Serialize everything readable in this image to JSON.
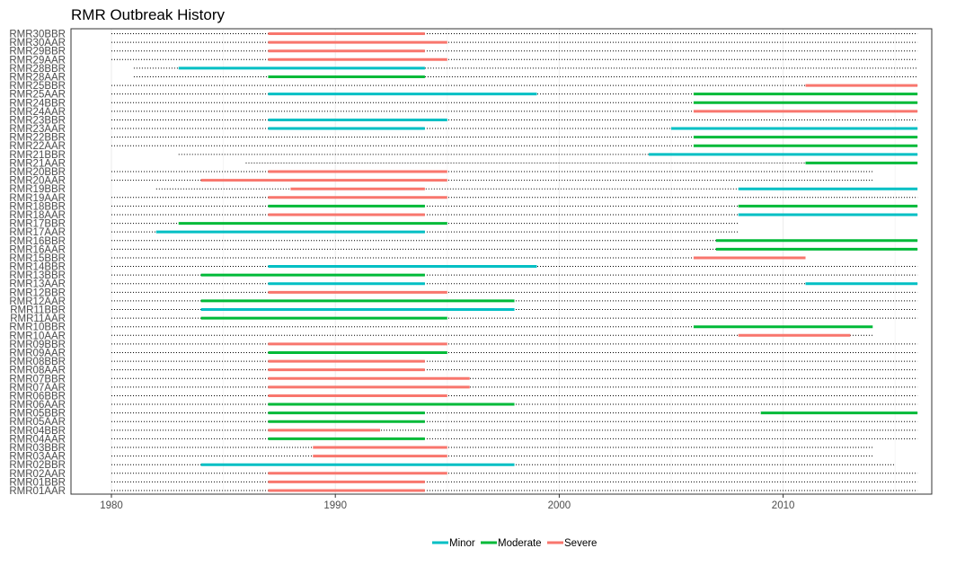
{
  "chart_data": {
    "type": "timeline",
    "title": "RMR Outbreak History",
    "xlabel": "",
    "ylabel": "",
    "xlim": [
      1980,
      2016
    ],
    "x_ticks": [
      1980,
      1990,
      2000,
      2010
    ],
    "grid": true,
    "legend_position": "bottom",
    "legend": [
      {
        "name": "Minor",
        "color": "#00BFC4"
      },
      {
        "name": "Moderate",
        "color": "#00BA38"
      },
      {
        "name": "Severe",
        "color": "#F8766D"
      }
    ],
    "rows": [
      {
        "label": "RMR30BBR",
        "dotted": [
          1980,
          2016
        ],
        "segments": [
          {
            "start": 1987,
            "end": 1994,
            "severity": "Severe"
          }
        ]
      },
      {
        "label": "RMR30AAR",
        "dotted": [
          1980,
          2016
        ],
        "segments": [
          {
            "start": 1987,
            "end": 1995,
            "severity": "Severe"
          }
        ]
      },
      {
        "label": "RMR29BBR",
        "dotted": [
          1980,
          2016
        ],
        "segments": [
          {
            "start": 1987,
            "end": 1994,
            "severity": "Severe"
          }
        ]
      },
      {
        "label": "RMR29AAR",
        "dotted": [
          1980,
          2016
        ],
        "segments": [
          {
            "start": 1987,
            "end": 1995,
            "severity": "Severe"
          }
        ]
      },
      {
        "label": "RMR28BBR",
        "dotted": [
          1981,
          2016
        ],
        "segments": [
          {
            "start": 1983,
            "end": 1994,
            "severity": "Minor"
          }
        ]
      },
      {
        "label": "RMR28AAR",
        "dotted": [
          1981,
          2016
        ],
        "segments": [
          {
            "start": 1987,
            "end": 1994,
            "severity": "Moderate"
          }
        ]
      },
      {
        "label": "RMR25BBR",
        "dotted": [
          1980,
          2016
        ],
        "segments": [
          {
            "start": 2011,
            "end": 2016,
            "severity": "Severe"
          }
        ]
      },
      {
        "label": "RMR25AAR",
        "dotted": [
          1980,
          2016
        ],
        "segments": [
          {
            "start": 1987,
            "end": 1999,
            "severity": "Minor"
          },
          {
            "start": 2006,
            "end": 2016,
            "severity": "Moderate"
          }
        ]
      },
      {
        "label": "RMR24BBR",
        "dotted": [
          1980,
          2016
        ],
        "segments": [
          {
            "start": 2006,
            "end": 2016,
            "severity": "Moderate"
          }
        ]
      },
      {
        "label": "RMR24AAR",
        "dotted": [
          1980,
          2016
        ],
        "segments": [
          {
            "start": 2006,
            "end": 2016,
            "severity": "Severe"
          }
        ]
      },
      {
        "label": "RMR23BBR",
        "dotted": [
          1980,
          2016
        ],
        "segments": [
          {
            "start": 1987,
            "end": 1995,
            "severity": "Minor"
          }
        ]
      },
      {
        "label": "RMR23AAR",
        "dotted": [
          1980,
          2016
        ],
        "segments": [
          {
            "start": 1987,
            "end": 1994,
            "severity": "Minor"
          },
          {
            "start": 2005,
            "end": 2016,
            "severity": "Minor"
          }
        ]
      },
      {
        "label": "RMR22BBR",
        "dotted": [
          1980,
          2016
        ],
        "segments": [
          {
            "start": 2006,
            "end": 2016,
            "severity": "Moderate"
          }
        ]
      },
      {
        "label": "RMR22AAR",
        "dotted": [
          1980,
          2016
        ],
        "segments": [
          {
            "start": 2006,
            "end": 2016,
            "severity": "Moderate"
          }
        ]
      },
      {
        "label": "RMR21BBR",
        "dotted": [
          1983,
          2016
        ],
        "segments": [
          {
            "start": 2004,
            "end": 2016,
            "severity": "Minor"
          }
        ]
      },
      {
        "label": "RMR21AAR",
        "dotted": [
          1986,
          2016
        ],
        "segments": [
          {
            "start": 2011,
            "end": 2016,
            "severity": "Moderate"
          }
        ]
      },
      {
        "label": "RMR20BBR",
        "dotted": [
          1980,
          2014
        ],
        "segments": [
          {
            "start": 1987,
            "end": 1995,
            "severity": "Severe"
          }
        ]
      },
      {
        "label": "RMR20AAR",
        "dotted": [
          1980,
          2014
        ],
        "segments": [
          {
            "start": 1984,
            "end": 1995,
            "severity": "Severe"
          }
        ]
      },
      {
        "label": "RMR19BBR",
        "dotted": [
          1982,
          2016
        ],
        "segments": [
          {
            "start": 1988,
            "end": 1994,
            "severity": "Severe"
          },
          {
            "start": 2008,
            "end": 2016,
            "severity": "Minor"
          }
        ]
      },
      {
        "label": "RMR19AAR",
        "dotted": [
          1980,
          2016
        ],
        "segments": [
          {
            "start": 1987,
            "end": 1995,
            "severity": "Severe"
          }
        ]
      },
      {
        "label": "RMR18BBR",
        "dotted": [
          1980,
          2016
        ],
        "segments": [
          {
            "start": 1987,
            "end": 1994,
            "severity": "Moderate"
          },
          {
            "start": 2008,
            "end": 2016,
            "severity": "Moderate"
          }
        ]
      },
      {
        "label": "RMR18AAR",
        "dotted": [
          1980,
          2016
        ],
        "segments": [
          {
            "start": 1987,
            "end": 1994,
            "severity": "Severe"
          },
          {
            "start": 2008,
            "end": 2016,
            "severity": "Minor"
          }
        ]
      },
      {
        "label": "RMR17BBR",
        "dotted": [
          1980,
          2008
        ],
        "segments": [
          {
            "start": 1983,
            "end": 1995,
            "severity": "Moderate"
          }
        ]
      },
      {
        "label": "RMR17AAR",
        "dotted": [
          1980,
          2008
        ],
        "segments": [
          {
            "start": 1982,
            "end": 1994,
            "severity": "Minor"
          }
        ]
      },
      {
        "label": "RMR16BBR",
        "dotted": [
          1980,
          2016
        ],
        "segments": [
          {
            "start": 2007,
            "end": 2016,
            "severity": "Moderate"
          }
        ]
      },
      {
        "label": "RMR16AAR",
        "dotted": [
          1980,
          2016
        ],
        "segments": [
          {
            "start": 2007,
            "end": 2016,
            "severity": "Moderate"
          }
        ]
      },
      {
        "label": "RMR15BBR",
        "dotted": [
          1980,
          2011
        ],
        "segments": [
          {
            "start": 2006,
            "end": 2011,
            "severity": "Severe"
          }
        ]
      },
      {
        "label": "RMR14BBR",
        "dotted": [
          1980,
          2016
        ],
        "segments": [
          {
            "start": 1987,
            "end": 1999,
            "severity": "Minor"
          }
        ]
      },
      {
        "label": "RMR13BBR",
        "dotted": [
          1980,
          2016
        ],
        "segments": [
          {
            "start": 1984,
            "end": 1994,
            "severity": "Moderate"
          }
        ]
      },
      {
        "label": "RMR13AAR",
        "dotted": [
          1980,
          2016
        ],
        "segments": [
          {
            "start": 1987,
            "end": 1994,
            "severity": "Minor"
          },
          {
            "start": 2011,
            "end": 2016,
            "severity": "Minor"
          }
        ]
      },
      {
        "label": "RMR12BBR",
        "dotted": [
          1980,
          2016
        ],
        "segments": [
          {
            "start": 1987,
            "end": 1995,
            "severity": "Severe"
          }
        ]
      },
      {
        "label": "RMR12AAR",
        "dotted": [
          1980,
          2016
        ],
        "segments": [
          {
            "start": 1984,
            "end": 1998,
            "severity": "Moderate"
          }
        ]
      },
      {
        "label": "RMR11BBR",
        "dotted": [
          1980,
          2016
        ],
        "segments": [
          {
            "start": 1984,
            "end": 1998,
            "severity": "Minor"
          }
        ]
      },
      {
        "label": "RMR11AAR",
        "dotted": [
          1980,
          2016
        ],
        "segments": [
          {
            "start": 1984,
            "end": 1995,
            "severity": "Moderate"
          }
        ]
      },
      {
        "label": "RMR10BBR",
        "dotted": [
          1980,
          2014
        ],
        "segments": [
          {
            "start": 2006,
            "end": 2014,
            "severity": "Moderate"
          }
        ]
      },
      {
        "label": "RMR10AAR",
        "dotted": [
          1980,
          2014
        ],
        "segments": [
          {
            "start": 2008,
            "end": 2013,
            "severity": "Severe"
          }
        ]
      },
      {
        "label": "RMR09BBR",
        "dotted": [
          1980,
          2016
        ],
        "segments": [
          {
            "start": 1987,
            "end": 1995,
            "severity": "Severe"
          }
        ]
      },
      {
        "label": "RMR09AAR",
        "dotted": [
          1980,
          2016
        ],
        "segments": [
          {
            "start": 1987,
            "end": 1995,
            "severity": "Moderate"
          }
        ]
      },
      {
        "label": "RMR08BBR",
        "dotted": [
          1980,
          2016
        ],
        "segments": [
          {
            "start": 1987,
            "end": 1994,
            "severity": "Severe"
          }
        ]
      },
      {
        "label": "RMR08AAR",
        "dotted": [
          1980,
          2016
        ],
        "segments": [
          {
            "start": 1987,
            "end": 1994,
            "severity": "Severe"
          }
        ]
      },
      {
        "label": "RMR07BBR",
        "dotted": [
          1980,
          2016
        ],
        "segments": [
          {
            "start": 1987,
            "end": 1996,
            "severity": "Severe"
          }
        ]
      },
      {
        "label": "RMR07AAR",
        "dotted": [
          1980,
          2016
        ],
        "segments": [
          {
            "start": 1987,
            "end": 1996,
            "severity": "Severe"
          }
        ]
      },
      {
        "label": "RMR06BBR",
        "dotted": [
          1980,
          2016
        ],
        "segments": [
          {
            "start": 1987,
            "end": 1995,
            "severity": "Severe"
          }
        ]
      },
      {
        "label": "RMR06AAR",
        "dotted": [
          1980,
          2016
        ],
        "segments": [
          {
            "start": 1987,
            "end": 1998,
            "severity": "Moderate"
          }
        ]
      },
      {
        "label": "RMR05BBR",
        "dotted": [
          1980,
          2016
        ],
        "segments": [
          {
            "start": 1987,
            "end": 1994,
            "severity": "Moderate"
          },
          {
            "start": 2009,
            "end": 2016,
            "severity": "Moderate"
          }
        ]
      },
      {
        "label": "RMR05AAR",
        "dotted": [
          1980,
          2016
        ],
        "segments": [
          {
            "start": 1987,
            "end": 1994,
            "severity": "Moderate"
          }
        ]
      },
      {
        "label": "RMR04BBR",
        "dotted": [
          1980,
          2016
        ],
        "segments": [
          {
            "start": 1987,
            "end": 1992,
            "severity": "Severe"
          }
        ]
      },
      {
        "label": "RMR04AAR",
        "dotted": [
          1980,
          2016
        ],
        "segments": [
          {
            "start": 1987,
            "end": 1994,
            "severity": "Moderate"
          }
        ]
      },
      {
        "label": "RMR03BBR",
        "dotted": [
          1980,
          2014
        ],
        "segments": [
          {
            "start": 1989,
            "end": 1995,
            "severity": "Severe"
          }
        ]
      },
      {
        "label": "RMR03AAR",
        "dotted": [
          1980,
          2014
        ],
        "segments": [
          {
            "start": 1989,
            "end": 1995,
            "severity": "Severe"
          }
        ]
      },
      {
        "label": "RMR02BBR",
        "dotted": [
          1980,
          2015
        ],
        "segments": [
          {
            "start": 1984,
            "end": 1998,
            "severity": "Minor"
          }
        ]
      },
      {
        "label": "RMR02AAR",
        "dotted": [
          1980,
          2016
        ],
        "segments": [
          {
            "start": 1987,
            "end": 1995,
            "severity": "Severe"
          }
        ]
      },
      {
        "label": "RMR01BBR",
        "dotted": [
          1980,
          2016
        ],
        "segments": [
          {
            "start": 1987,
            "end": 1994,
            "severity": "Severe"
          }
        ]
      },
      {
        "label": "RMR01AAR",
        "dotted": [
          1980,
          2016
        ],
        "segments": [
          {
            "start": 1987,
            "end": 1994,
            "severity": "Severe"
          }
        ]
      }
    ]
  }
}
